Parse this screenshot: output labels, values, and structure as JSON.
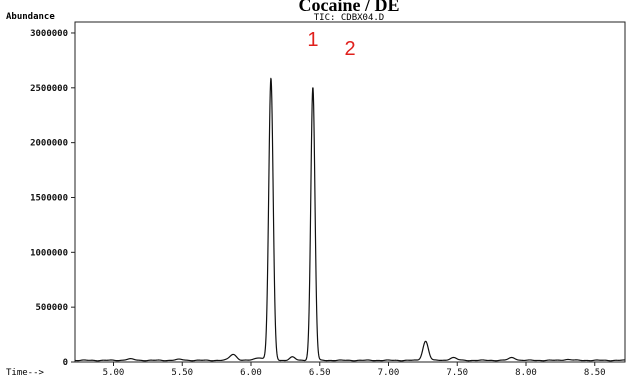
{
  "chart_data": {
    "type": "line",
    "title": "Cocaine / DE",
    "subtitle": "TIC: CDBX04.D",
    "ylabel": "Abundance",
    "xlabel": "Time-->",
    "xlim": [
      4.72,
      8.72
    ],
    "ylim": [
      0,
      3100000
    ],
    "x_ticks": [
      {
        "value": 5.0,
        "label": "5.00"
      },
      {
        "value": 5.5,
        "label": "5.50"
      },
      {
        "value": 6.0,
        "label": "6.00"
      },
      {
        "value": 6.5,
        "label": "6.50"
      },
      {
        "value": 7.0,
        "label": "7.00"
      },
      {
        "value": 7.5,
        "label": "7.50"
      },
      {
        "value": 8.0,
        "label": "8.00"
      },
      {
        "value": 8.5,
        "label": "8.50"
      }
    ],
    "y_ticks": [
      {
        "value": 0,
        "label": "0"
      },
      {
        "value": 500000,
        "label": "500000"
      },
      {
        "value": 1000000,
        "label": "1000000"
      },
      {
        "value": 1500000,
        "label": "1500000"
      },
      {
        "value": 2000000,
        "label": "2000000"
      },
      {
        "value": 2500000,
        "label": "2500000"
      },
      {
        "value": 3000000,
        "label": "3000000"
      }
    ],
    "grid": false,
    "baseline": 15000,
    "peaks": [
      {
        "time": 5.12,
        "height": 12000,
        "width": 0.03
      },
      {
        "time": 5.48,
        "height": 8000,
        "width": 0.03
      },
      {
        "time": 5.87,
        "height": 55000,
        "width": 0.025
      },
      {
        "time": 6.06,
        "height": 25000,
        "width": 0.03
      },
      {
        "time": 6.145,
        "height": 2570000,
        "width": 0.016
      },
      {
        "time": 6.3,
        "height": 30000,
        "width": 0.02
      },
      {
        "time": 6.45,
        "height": 2490000,
        "width": 0.015
      },
      {
        "time": 7.27,
        "height": 175000,
        "width": 0.02
      },
      {
        "time": 7.47,
        "height": 25000,
        "width": 0.025
      },
      {
        "time": 7.9,
        "height": 25000,
        "width": 0.025
      },
      {
        "time": 8.3,
        "height": 8000,
        "width": 0.03
      }
    ],
    "series": [
      {
        "x": [
          4.72,
          5.0,
          5.5,
          5.87,
          6.0,
          6.1,
          6.145,
          6.2,
          6.3,
          6.4,
          6.45,
          6.5,
          7.0,
          7.27,
          7.5,
          7.9,
          8.5,
          8.72
        ],
        "y": [
          15000,
          15000,
          20000,
          70000,
          20000,
          30000,
          2585000,
          15000,
          45000,
          16000,
          2505000,
          15000,
          15000,
          190000,
          40000,
          40000,
          15000,
          15000
        ]
      }
    ],
    "annotations": [
      {
        "label": "1",
        "x": 6.45,
        "y": 2880000,
        "color": "#e0201c"
      },
      {
        "label": "2",
        "x": 6.72,
        "y": 2800000,
        "color": "#e0201c"
      }
    ]
  }
}
